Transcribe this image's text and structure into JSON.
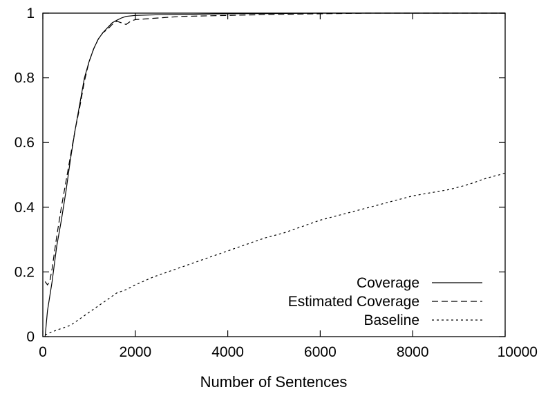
{
  "chart_data": {
    "type": "line",
    "title": "",
    "xlabel": "Number of Sentences",
    "ylabel": "",
    "xlim": [
      0,
      10000
    ],
    "ylim": [
      0,
      1
    ],
    "xticks": [
      0,
      2000,
      4000,
      6000,
      8000,
      10000
    ],
    "xtick_labels": [
      "0",
      "2000",
      "4000",
      "6000",
      "8000",
      "10000"
    ],
    "yticks": [
      0,
      0.2,
      0.4,
      0.6,
      0.8,
      1
    ],
    "ytick_labels": [
      "0",
      "0.2",
      "0.4",
      "0.6",
      "0.8",
      "1"
    ],
    "grid": false,
    "legend_position": "bottom-right",
    "colors": {
      "line": "#000000",
      "axes": "#000000",
      "background": "#ffffff"
    },
    "series": [
      {
        "name": "Coverage",
        "style": "solid",
        "x": [
          50,
          100,
          200,
          300,
          400,
          500,
          600,
          700,
          800,
          900,
          1000,
          1100,
          1200,
          1300,
          1400,
          1500,
          1600,
          1700,
          1800,
          2000,
          2500,
          3000,
          4000,
          5000,
          6000,
          7000,
          8000,
          9000,
          10000
        ],
        "y": [
          0,
          0.08,
          0.17,
          0.28,
          0.36,
          0.45,
          0.55,
          0.64,
          0.72,
          0.8,
          0.85,
          0.89,
          0.92,
          0.94,
          0.955,
          0.97,
          0.978,
          0.985,
          0.99,
          0.993,
          0.995,
          0.996,
          0.998,
          0.999,
          1,
          1,
          1,
          1,
          1
        ]
      },
      {
        "name": "Estimated Coverage",
        "style": "dashed",
        "x": [
          50,
          100,
          150,
          200,
          300,
          400,
          500,
          600,
          700,
          800,
          900,
          1000,
          1100,
          1200,
          1300,
          1400,
          1500,
          1600,
          1700,
          1800,
          1900,
          2000,
          2500,
          3000,
          4000,
          5000,
          6000,
          7000,
          8000,
          9000,
          10000
        ],
        "y": [
          0.17,
          0.16,
          0.17,
          0.21,
          0.31,
          0.4,
          0.48,
          0.56,
          0.64,
          0.71,
          0.79,
          0.85,
          0.89,
          0.92,
          0.94,
          0.95,
          0.965,
          0.975,
          0.97,
          0.965,
          0.975,
          0.98,
          0.985,
          0.99,
          0.993,
          0.996,
          0.998,
          1,
          1,
          1,
          1
        ]
      },
      {
        "name": "Baseline",
        "style": "dotted",
        "x": [
          50,
          200,
          400,
          600,
          800,
          1000,
          1200,
          1400,
          1600,
          1800,
          2000,
          2400,
          2800,
          3200,
          3600,
          4000,
          4400,
          4800,
          5200,
          5600,
          6000,
          6400,
          6800,
          7200,
          7600,
          8000,
          8400,
          8800,
          9200,
          9600,
          10000
        ],
        "y": [
          0.005,
          0.015,
          0.025,
          0.035,
          0.055,
          0.075,
          0.095,
          0.115,
          0.135,
          0.145,
          0.16,
          0.185,
          0.205,
          0.225,
          0.245,
          0.265,
          0.285,
          0.305,
          0.32,
          0.34,
          0.36,
          0.375,
          0.39,
          0.405,
          0.42,
          0.435,
          0.445,
          0.455,
          0.47,
          0.49,
          0.505
        ]
      }
    ]
  }
}
